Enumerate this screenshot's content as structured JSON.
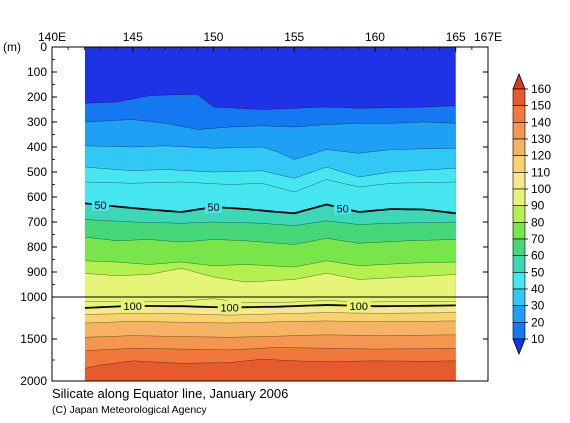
{
  "chart_data": {
    "type": "contour",
    "title": "Silicate along Equator line, January 2006",
    "copyright": "(C) Japan Meteorological Agency",
    "yunit": "(m)",
    "x_ticks": [
      "140E",
      "145",
      "150",
      "155",
      "160",
      "165",
      "167E"
    ],
    "x_tick_values": [
      140,
      145,
      150,
      155,
      160,
      165,
      167
    ],
    "xlim": [
      140,
      167
    ],
    "data_x_range": [
      142,
      165
    ],
    "y_ticks": [
      "0",
      "100",
      "200",
      "300",
      "400",
      "500",
      "600",
      "700",
      "800",
      "900",
      "1000",
      "1500",
      "2000"
    ],
    "y_tick_values": [
      0,
      100,
      200,
      300,
      400,
      500,
      600,
      700,
      800,
      900,
      1000,
      1500,
      2000
    ],
    "ylim": [
      0,
      2000
    ],
    "y_axis_note": "linear 0-1000 m upper panel, linear 1000-2000 m lower panel",
    "contour_interval": 10,
    "labeled_contours": [
      {
        "value": 50,
        "labels": [
          "50",
          "50",
          "50"
        ],
        "label_lons": [
          143,
          150,
          158
        ]
      },
      {
        "value": 100,
        "labels": [
          "100",
          "100",
          "100"
        ],
        "label_lons": [
          145,
          151,
          159
        ]
      }
    ],
    "colorbar": {
      "levels": [
        10,
        20,
        30,
        40,
        50,
        60,
        70,
        80,
        90,
        100,
        110,
        120,
        130,
        140,
        150,
        160
      ],
      "labels": [
        "10",
        "20",
        "30",
        "40",
        "50",
        "60",
        "70",
        "80",
        "90",
        "100",
        "110",
        "120",
        "130",
        "140",
        "150",
        "160"
      ],
      "colors": [
        "#1e32e6",
        "#1478f0",
        "#1ea0f5",
        "#32c8f5",
        "#46e6f0",
        "#3cd7b4",
        "#46d778",
        "#78e64b",
        "#b4f050",
        "#e6f578",
        "#fae68c",
        "#fad26e",
        "#f5b464",
        "#f59650",
        "#f0783c",
        "#e65a2d",
        "#dc3c1e"
      ]
    },
    "isolines": [
      {
        "value": 10,
        "lons": [
          142,
          144,
          146,
          148,
          149,
          150,
          153,
          155,
          157,
          159,
          163,
          165
        ],
        "depths": [
          225,
          220,
          195,
          190,
          190,
          240,
          250,
          245,
          240,
          245,
          240,
          235
        ]
      },
      {
        "value": 20,
        "lons": [
          142,
          145,
          147,
          149,
          151,
          153,
          155,
          157,
          159,
          161,
          163,
          165
        ],
        "depths": [
          300,
          290,
          305,
          330,
          320,
          315,
          320,
          310,
          305,
          305,
          300,
          305
        ]
      },
      {
        "value": 30,
        "lons": [
          142,
          145,
          147,
          150,
          153,
          154,
          155,
          157,
          159,
          161,
          165
        ],
        "depths": [
          395,
          400,
          395,
          405,
          400,
          420,
          450,
          410,
          425,
          410,
          405
        ]
      },
      {
        "value": 40,
        "lons": [
          142,
          145,
          147,
          150,
          153,
          155,
          157,
          159,
          161,
          165
        ],
        "depths": [
          480,
          495,
          490,
          500,
          495,
          525,
          480,
          520,
          500,
          485
        ]
      },
      {
        "value": 45,
        "lons": [
          142,
          145,
          148,
          151,
          153,
          155,
          157,
          159,
          161,
          165
        ],
        "depths": [
          540,
          545,
          540,
          550,
          545,
          580,
          530,
          560,
          545,
          540
        ]
      },
      {
        "value": 50,
        "lons": [
          142,
          144,
          146,
          148,
          150,
          152,
          154,
          155,
          157,
          159,
          161,
          163,
          165
        ],
        "depths": [
          625,
          638,
          650,
          660,
          640,
          648,
          660,
          665,
          630,
          660,
          648,
          650,
          665
        ]
      },
      {
        "value": 60,
        "lons": [
          142,
          145,
          148,
          150,
          153,
          155,
          157,
          159,
          161,
          165
        ],
        "depths": [
          690,
          700,
          705,
          700,
          705,
          715,
          695,
          710,
          705,
          700
        ]
      },
      {
        "value": 70,
        "lons": [
          142,
          144,
          146,
          148,
          150,
          152,
          155,
          157,
          159,
          162,
          165
        ],
        "depths": [
          760,
          775,
          770,
          780,
          770,
          775,
          790,
          765,
          785,
          775,
          770
        ]
      },
      {
        "value": 80,
        "lons": [
          142,
          144,
          146,
          148,
          150,
          152,
          155,
          157,
          159,
          162,
          165
        ],
        "depths": [
          855,
          860,
          870,
          860,
          875,
          870,
          880,
          855,
          875,
          865,
          860
        ]
      },
      {
        "value": 90,
        "lons": [
          142,
          144,
          146,
          148,
          150,
          152,
          155,
          157,
          159,
          162,
          165
        ],
        "depths": [
          905,
          915,
          910,
          885,
          920,
          940,
          930,
          905,
          930,
          920,
          910
        ]
      },
      {
        "value": 95,
        "lons": [
          142,
          145,
          148,
          150,
          152,
          155,
          157,
          159,
          162,
          165
        ],
        "depths": [
          1050,
          1060,
          1050,
          1020,
          1070,
          1060,
          1040,
          1060,
          1055,
          1050
        ]
      },
      {
        "value": 100,
        "lons": [
          142,
          145,
          148,
          151,
          154,
          157,
          160,
          163,
          165
        ],
        "depths": [
          1130,
          1105,
          1110,
          1125,
          1115,
          1095,
          1110,
          1105,
          1100
        ]
      },
      {
        "value": 110,
        "lons": [
          142,
          145,
          148,
          151,
          154,
          157,
          160,
          163,
          165
        ],
        "depths": [
          1210,
          1195,
          1200,
          1215,
          1200,
          1185,
          1195,
          1190,
          1185
        ]
      },
      {
        "value": 120,
        "lons": [
          142,
          145,
          148,
          151,
          154,
          157,
          160,
          163,
          165
        ],
        "depths": [
          1310,
          1290,
          1300,
          1310,
          1295,
          1285,
          1295,
          1290,
          1285
        ]
      },
      {
        "value": 130,
        "lons": [
          142,
          145,
          148,
          151,
          154,
          157,
          160,
          163,
          165
        ],
        "depths": [
          1480,
          1460,
          1470,
          1480,
          1465,
          1450,
          1460,
          1455,
          1450
        ]
      },
      {
        "value": 140,
        "lons": [
          142,
          145,
          148,
          151,
          154,
          157,
          160,
          163,
          165
        ],
        "depths": [
          1640,
          1610,
          1620,
          1630,
          1600,
          1610,
          1620,
          1615,
          1610
        ]
      },
      {
        "value": 150,
        "lons": [
          142,
          143,
          145,
          148,
          151,
          153,
          155,
          157,
          160,
          163,
          165
        ],
        "depths": [
          1850,
          1810,
          1760,
          1790,
          1780,
          1740,
          1760,
          1770,
          1760,
          1765,
          1760
        ]
      }
    ]
  }
}
